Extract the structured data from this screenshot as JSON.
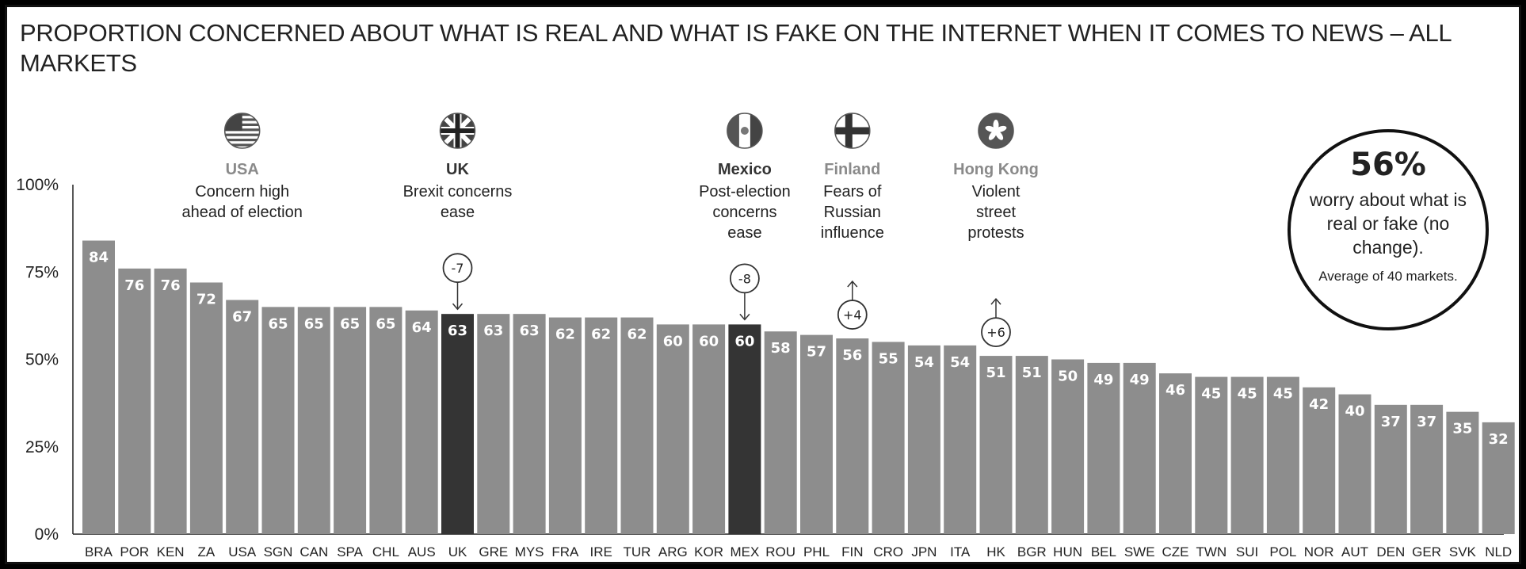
{
  "title": "PROPORTION CONCERNED ABOUT WHAT IS REAL AND WHAT IS FAKE ON THE INTERNET WHEN IT COMES TO NEWS – ALL MARKETS",
  "colors": {
    "bar": "#8d8d8d",
    "bar_highlight": "#343434",
    "annotation_grey": "#8a8a8a",
    "annotation_dark": "#333333"
  },
  "chart_data": {
    "type": "bar",
    "categories": [
      "BRA",
      "POR",
      "KEN",
      "ZA",
      "USA",
      "SGN",
      "CAN",
      "SPA",
      "CHL",
      "AUS",
      "UK",
      "GRE",
      "MYS",
      "FRA",
      "IRE",
      "TUR",
      "ARG",
      "KOR",
      "MEX",
      "ROU",
      "PHL",
      "FIN",
      "CRO",
      "JPN",
      "ITA",
      "HK",
      "BGR",
      "HUN",
      "BEL",
      "SWE",
      "CZE",
      "TWN",
      "SUI",
      "POL",
      "NOR",
      "AUT",
      "DEN",
      "GER",
      "SVK",
      "NLD"
    ],
    "values": [
      84,
      76,
      76,
      72,
      67,
      65,
      65,
      65,
      65,
      64,
      63,
      63,
      63,
      62,
      62,
      62,
      60,
      60,
      60,
      58,
      57,
      56,
      55,
      54,
      54,
      51,
      51,
      50,
      49,
      49,
      46,
      45,
      45,
      45,
      42,
      40,
      37,
      37,
      35,
      32
    ],
    "value_labels": [
      "84",
      "76",
      "76",
      "72",
      "67",
      "65",
      "65",
      "65",
      "65",
      "64",
      "63",
      "63",
      "63",
      "62",
      "62",
      "62",
      "60",
      "60",
      "60",
      "58",
      "57",
      "56",
      "55",
      "54",
      "54",
      "51",
      "51",
      "50",
      "49",
      "49",
      "46",
      "45",
      "45",
      "45",
      "42",
      "40",
      "37",
      "37",
      "35",
      "32"
    ],
    "highlighted": [
      "UK",
      "MEX"
    ],
    "ylim": [
      0,
      100
    ],
    "yticks": [
      "0%",
      "25%",
      "50%",
      "75%",
      "100%"
    ],
    "grid": false,
    "title": "PROPORTION CONCERNED ABOUT WHAT IS REAL AND WHAT IS FAKE ON THE INTERNET WHEN IT COMES TO NEWS – ALL MARKETS"
  },
  "annotations": [
    {
      "country": "USA",
      "name": "USA",
      "flag_icon": "usa-flag-icon",
      "lines": [
        "Concern high",
        "ahead of election"
      ],
      "style": "grey",
      "change": ""
    },
    {
      "country": "UK",
      "name": "UK",
      "flag_icon": "uk-flag-icon",
      "lines": [
        "Brexit concerns",
        "ease"
      ],
      "style": "dark",
      "change": "-7",
      "direction": "down"
    },
    {
      "country": "MEX",
      "name": "Mexico",
      "flag_icon": "mexico-flag-icon",
      "lines": [
        "Post-election",
        "concerns",
        "ease"
      ],
      "style": "dark",
      "change": "-8",
      "direction": "down"
    },
    {
      "country": "FIN",
      "name": "Finland",
      "flag_icon": "finland-flag-icon",
      "lines": [
        "Fears of",
        "Russian",
        "influence"
      ],
      "style": "grey",
      "change": "+4",
      "direction": "up"
    },
    {
      "country": "HK",
      "name": "Hong Kong",
      "flag_icon": "hong-kong-flag-icon",
      "lines": [
        "Violent",
        "street",
        "protests"
      ],
      "style": "grey",
      "change": "+6",
      "direction": "up"
    }
  ],
  "summary": {
    "headline": "56%",
    "text": "worry about what is real or fake (no change).",
    "note": "Average of 40 markets."
  }
}
